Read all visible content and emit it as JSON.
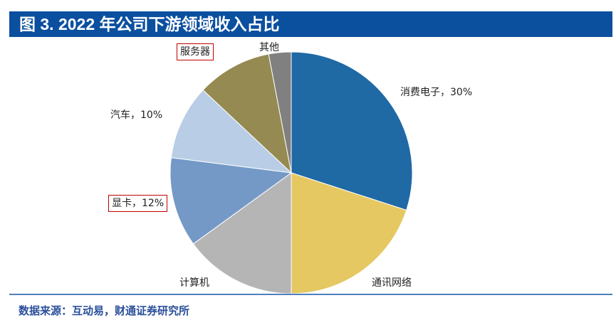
{
  "header": {
    "title": "图 3. 2022 年公司下游领域收入占比"
  },
  "chart_data": {
    "type": "pie",
    "title": "图 3. 2022 年公司下游领域收入占比",
    "start": "top, clockwise",
    "slices": [
      {
        "name": "消费电子",
        "value": 30,
        "label": "消费电子，30%",
        "color": "#1f69a5",
        "highlighted": false
      },
      {
        "name": "通讯网络",
        "value": 20,
        "label": "通讯网络",
        "color": "#e5c862",
        "highlighted": false
      },
      {
        "name": "计算机",
        "value": 15,
        "label": "计算机",
        "color": "#b5b5b5",
        "highlighted": false
      },
      {
        "name": "显卡",
        "value": 12,
        "label": "显卡，12%",
        "color": "#7499c7",
        "highlighted": true
      },
      {
        "name": "汽车",
        "value": 10,
        "label": "汽车，10%",
        "color": "#b9cde6",
        "highlighted": false
      },
      {
        "name": "服务器",
        "value": 10,
        "label": "服务器",
        "color": "#958a51",
        "highlighted": true
      },
      {
        "name": "其他",
        "value": 3,
        "label": "其他",
        "color": "#808080",
        "highlighted": false
      }
    ]
  },
  "footer": {
    "source": "数据来源：互动易，财通证券研究所"
  }
}
